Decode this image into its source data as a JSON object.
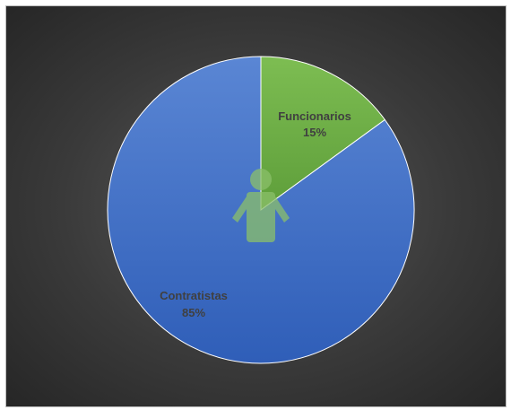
{
  "chart_data": {
    "type": "pie",
    "title": "",
    "categories": [
      "Funcionarios",
      "Contratistas"
    ],
    "values": [
      15,
      85
    ],
    "value_labels": [
      "15%",
      "85%"
    ],
    "colors": [
      "#70ad47",
      "#4472c4"
    ],
    "start_angle_deg": 0,
    "direction": "clockwise",
    "legend": "none",
    "center_icon": "person-icon"
  }
}
